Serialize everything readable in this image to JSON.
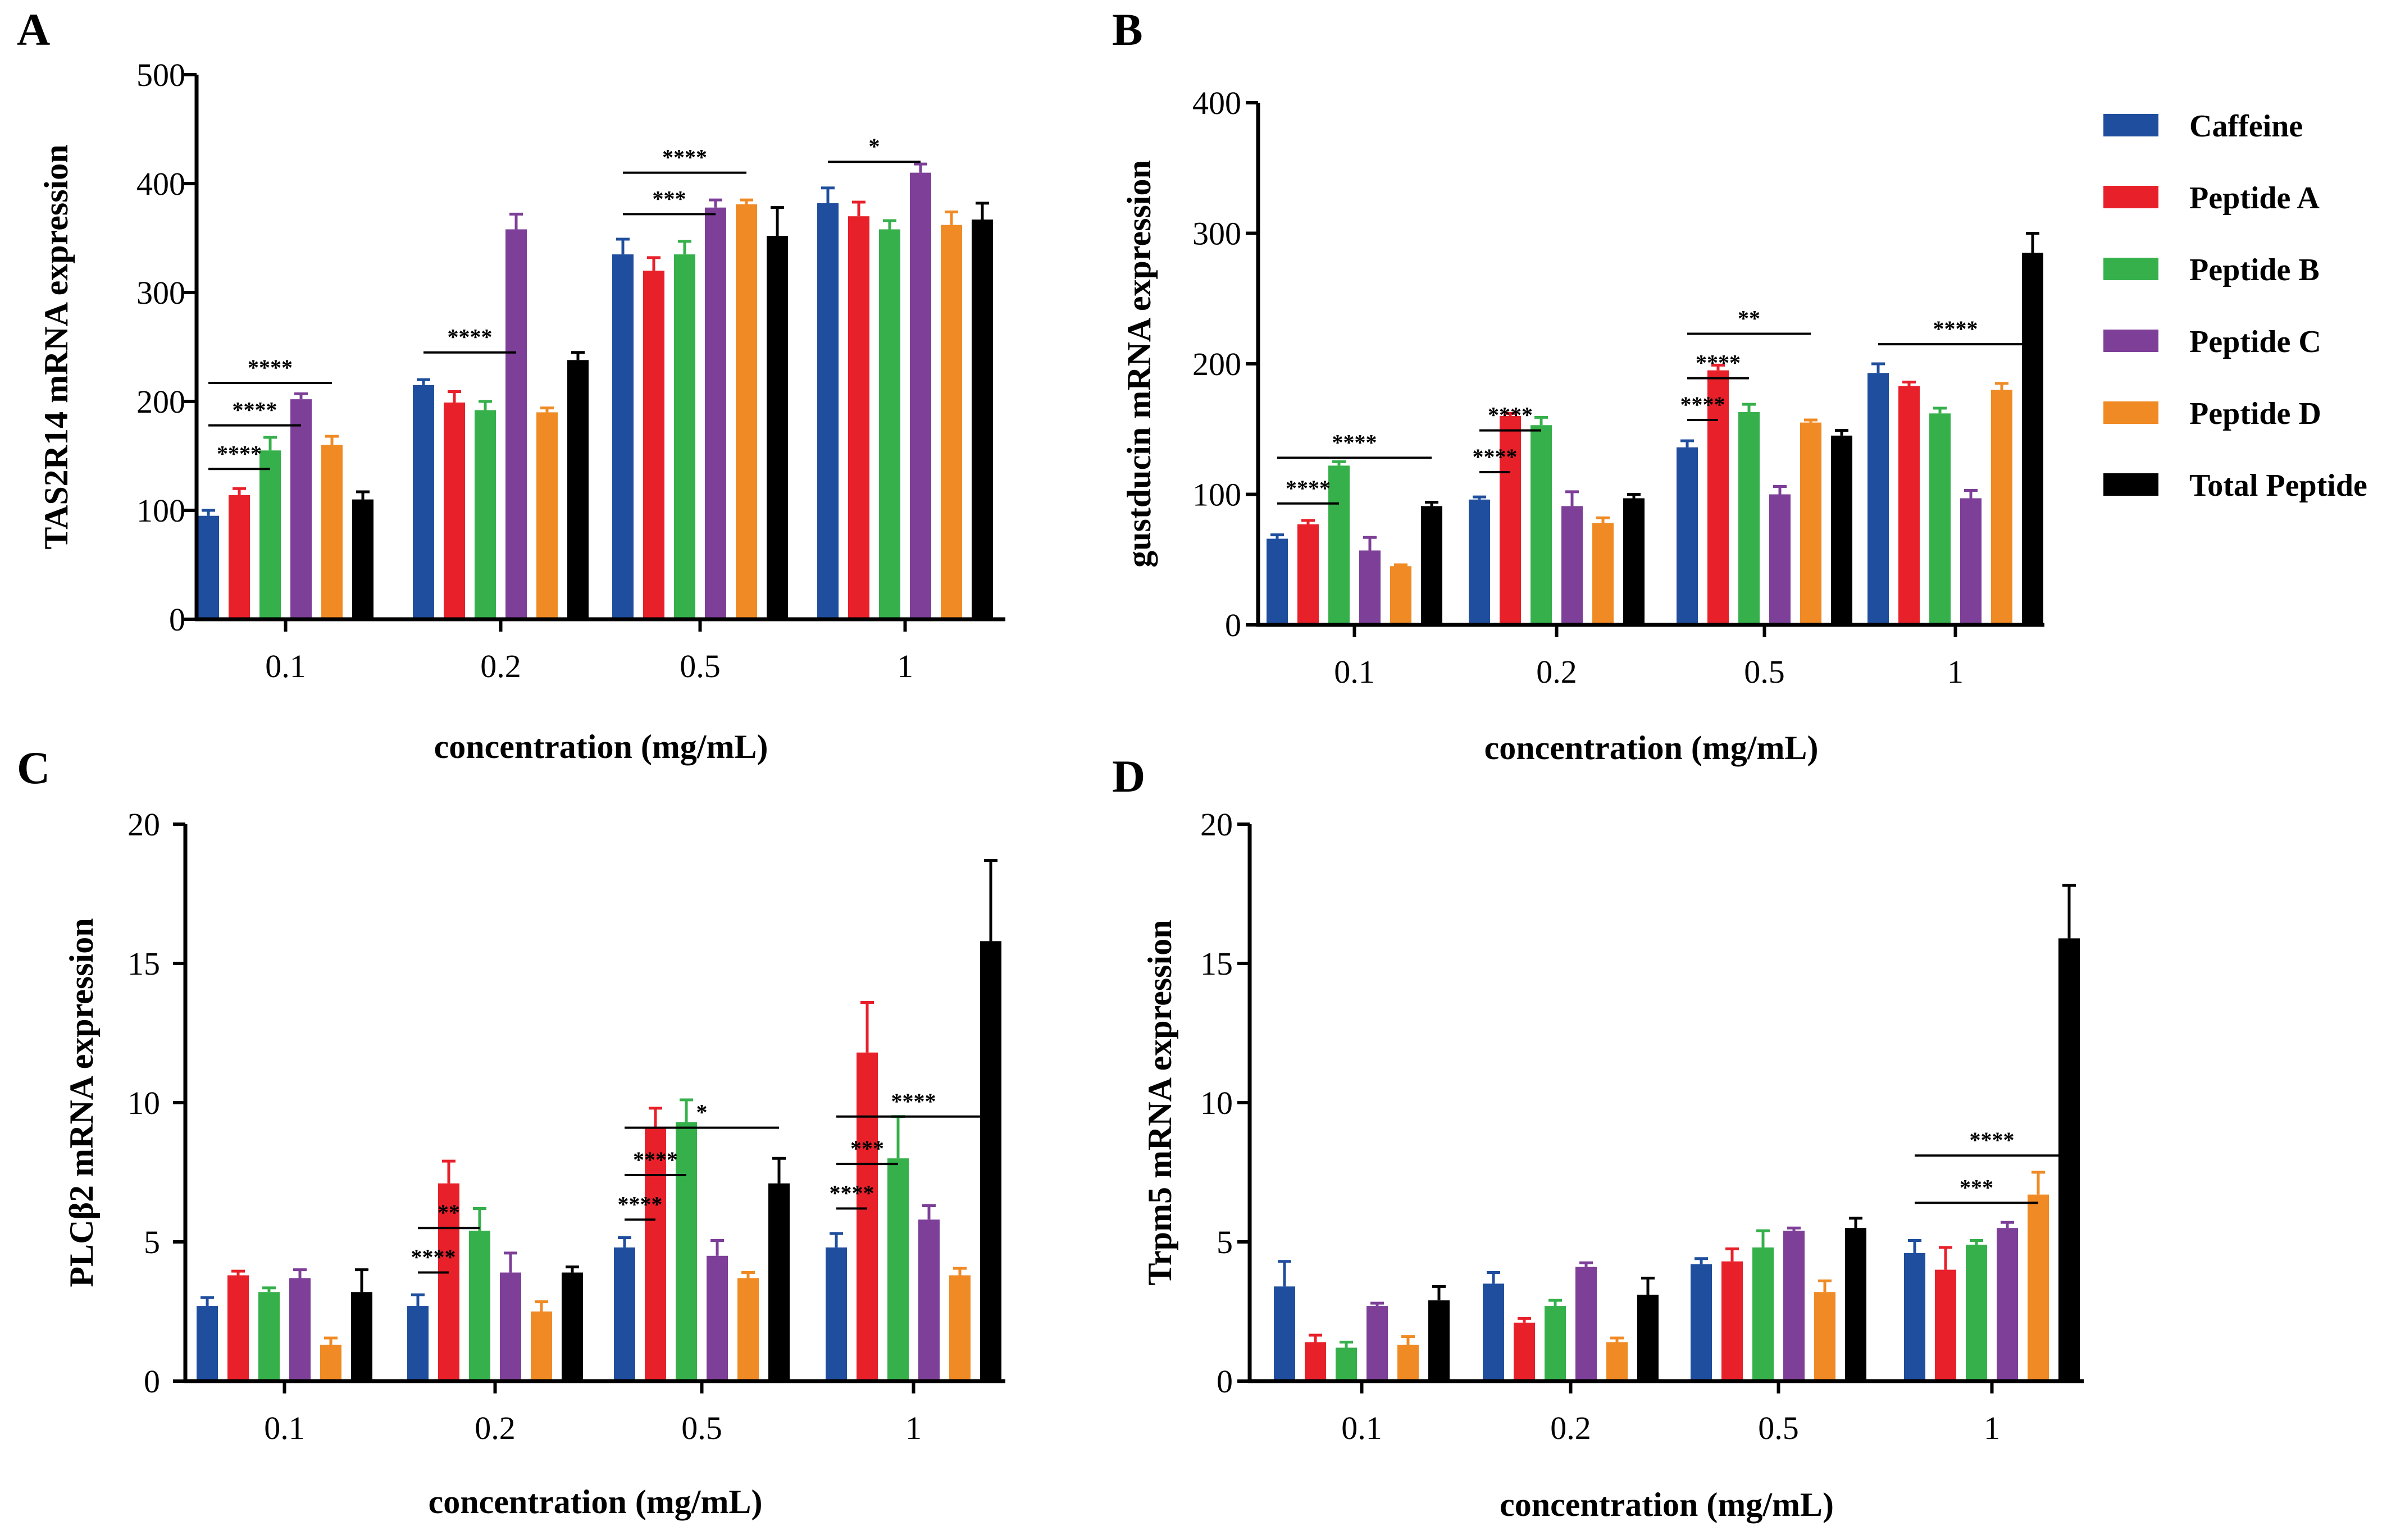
{
  "legend": [
    {
      "name": "Caffeine",
      "color": "#1F4E9E"
    },
    {
      "name": "Peptide A",
      "color": "#E8202A"
    },
    {
      "name": "Peptide B",
      "color": "#35B04A"
    },
    {
      "name": "Peptide C",
      "color": "#7D3F98"
    },
    {
      "name": "Peptide D",
      "color": "#F08A24"
    },
    {
      "name": "Total Peptide",
      "color": "#000000"
    }
  ],
  "chart_data": [
    {
      "panel": "A",
      "type": "bar",
      "ylabel": "TAS2R14 mRNA expression",
      "xlabel": "concentration (mg/mL)",
      "categories": [
        "0.1",
        "0.2",
        "0.5",
        "1"
      ],
      "ylim": [
        0,
        500
      ],
      "yticks": [
        "0",
        "100",
        "200",
        "300",
        "400",
        "500"
      ],
      "series": [
        {
          "name": "Caffeine",
          "values": [
            95,
            215,
            335,
            382
          ],
          "errors": [
            5,
            5,
            14,
            14
          ]
        },
        {
          "name": "Peptide A",
          "values": [
            114,
            199,
            320,
            370
          ],
          "errors": [
            6,
            10,
            12,
            13
          ]
        },
        {
          "name": "Peptide B",
          "values": [
            155,
            192,
            335,
            358
          ],
          "errors": [
            12,
            8,
            12,
            8
          ]
        },
        {
          "name": "Peptide C",
          "values": [
            202,
            358,
            378,
            410
          ],
          "errors": [
            5,
            14,
            7,
            8
          ]
        },
        {
          "name": "Peptide D",
          "values": [
            160,
            190,
            381,
            362
          ],
          "errors": [
            8,
            4,
            4,
            12
          ]
        },
        {
          "name": "Total Peptide",
          "values": [
            110,
            238,
            352,
            367
          ],
          "errors": [
            7,
            7,
            26,
            15
          ]
        }
      ],
      "significance": [
        {
          "label": "****",
          "group": 0,
          "from": 0,
          "to": 2,
          "y": 138
        },
        {
          "label": "****",
          "group": 0,
          "from": 0,
          "to": 3,
          "y": 178
        },
        {
          "label": "****",
          "group": 0,
          "from": 0,
          "to": 4,
          "y": 217
        },
        {
          "label": "****",
          "group": 1,
          "from": 0,
          "to": 3,
          "y": 245
        },
        {
          "label": "***",
          "group": 2,
          "from": 0,
          "to": 3,
          "y": 372
        },
        {
          "label": "****",
          "group": 2,
          "from": 0,
          "to": 4,
          "y": 410
        },
        {
          "label": "*",
          "group": 3,
          "from": 0,
          "to": 3,
          "y": 420
        }
      ]
    },
    {
      "panel": "B",
      "type": "bar",
      "ylabel": "gustducin mRNA expression",
      "xlabel": "concentration (mg/mL)",
      "categories": [
        "0.1",
        "0.2",
        "0.5",
        "1"
      ],
      "ylim": [
        0,
        400
      ],
      "yticks": [
        "0",
        "100",
        "200",
        "300",
        "400"
      ],
      "series": [
        {
          "name": "Caffeine",
          "values": [
            66,
            96,
            136,
            193
          ],
          "errors": [
            3,
            2,
            5,
            7
          ]
        },
        {
          "name": "Peptide A",
          "values": [
            77,
            160,
            195,
            183
          ],
          "errors": [
            3,
            2,
            4,
            3
          ]
        },
        {
          "name": "Peptide B",
          "values": [
            122,
            153,
            163,
            162
          ],
          "errors": [
            3,
            6,
            6,
            4
          ]
        },
        {
          "name": "Peptide C",
          "values": [
            57,
            91,
            100,
            97
          ],
          "errors": [
            10,
            11,
            6,
            6
          ]
        },
        {
          "name": "Peptide D",
          "values": [
            45,
            78,
            155,
            180
          ],
          "errors": [
            1,
            4,
            2,
            5
          ]
        },
        {
          "name": "Total Peptide",
          "values": [
            91,
            97,
            145,
            285
          ],
          "errors": [
            3,
            3,
            4,
            15
          ]
        }
      ],
      "significance": [
        {
          "label": "****",
          "group": 0,
          "from": 0,
          "to": 2,
          "y": 93
        },
        {
          "label": "****",
          "group": 0,
          "from": 0,
          "to": 5,
          "y": 128
        },
        {
          "label": "****",
          "group": 1,
          "from": 0,
          "to": 1,
          "y": 117
        },
        {
          "label": "****",
          "group": 1,
          "from": 0,
          "to": 2,
          "y": 149
        },
        {
          "label": "****",
          "group": 2,
          "from": 0,
          "to": 1,
          "y": 157
        },
        {
          "label": "****",
          "group": 2,
          "from": 0,
          "to": 2,
          "y": 189
        },
        {
          "label": "**",
          "group": 2,
          "from": 0,
          "to": 4,
          "y": 223
        },
        {
          "label": "****",
          "group": 3,
          "from": 0,
          "to": 5,
          "y": 215
        }
      ]
    },
    {
      "panel": "C",
      "type": "bar",
      "ylabel": "PLCβ2 mRNA expression",
      "xlabel": "concentration (mg/mL)",
      "categories": [
        "0.1",
        "0.2",
        "0.5",
        "1"
      ],
      "ylim": [
        0,
        20
      ],
      "yticks": [
        "0",
        "5",
        "10",
        "15",
        "20"
      ],
      "series": [
        {
          "name": "Caffeine",
          "values": [
            2.7,
            2.7,
            4.8,
            4.8
          ],
          "errors": [
            0.3,
            0.4,
            0.35,
            0.5
          ]
        },
        {
          "name": "Peptide A",
          "values": [
            3.8,
            7.1,
            9.1,
            11.8
          ],
          "errors": [
            0.15,
            0.8,
            0.7,
            1.8
          ]
        },
        {
          "name": "Peptide B",
          "values": [
            3.2,
            5.4,
            9.3,
            8.0
          ],
          "errors": [
            0.15,
            0.8,
            0.8,
            1.5
          ]
        },
        {
          "name": "Peptide C",
          "values": [
            3.7,
            3.9,
            4.5,
            5.8
          ],
          "errors": [
            0.3,
            0.7,
            0.55,
            0.5
          ]
        },
        {
          "name": "Peptide D",
          "values": [
            1.3,
            2.5,
            3.7,
            3.8
          ],
          "errors": [
            0.25,
            0.35,
            0.2,
            0.25
          ]
        },
        {
          "name": "Total Peptide",
          "values": [
            3.2,
            3.9,
            7.1,
            15.8
          ],
          "errors": [
            0.8,
            0.2,
            0.9,
            2.9
          ]
        }
      ],
      "significance": [
        {
          "label": "****",
          "group": 1,
          "from": 0,
          "to": 1,
          "y": 3.9
        },
        {
          "label": "**",
          "group": 1,
          "from": 0,
          "to": 2,
          "y": 5.5
        },
        {
          "label": "****",
          "group": 2,
          "from": 0,
          "to": 1,
          "y": 5.8
        },
        {
          "label": "****",
          "group": 2,
          "from": 0,
          "to": 2,
          "y": 7.4
        },
        {
          "label": "*",
          "group": 2,
          "from": 0,
          "to": 5,
          "y": 9.1
        },
        {
          "label": "****",
          "group": 3,
          "from": 0,
          "to": 1,
          "y": 6.2
        },
        {
          "label": "***",
          "group": 3,
          "from": 0,
          "to": 2,
          "y": 7.8
        },
        {
          "label": "****",
          "group": 3,
          "from": 0,
          "to": 5,
          "y": 9.5
        }
      ]
    },
    {
      "panel": "D",
      "type": "bar",
      "ylabel": "Trpm5 mRNA expression",
      "xlabel": "concentration (mg/mL)",
      "categories": [
        "0.1",
        "0.2",
        "0.5",
        "1"
      ],
      "ylim": [
        0,
        20
      ],
      "yticks": [
        "0",
        "5",
        "10",
        "15",
        "20"
      ],
      "series": [
        {
          "name": "Caffeine",
          "values": [
            3.4,
            3.5,
            4.2,
            4.6
          ],
          "errors": [
            0.9,
            0.4,
            0.2,
            0.45
          ]
        },
        {
          "name": "Peptide A",
          "values": [
            1.4,
            2.1,
            4.3,
            4.0
          ],
          "errors": [
            0.25,
            0.15,
            0.45,
            0.8
          ]
        },
        {
          "name": "Peptide B",
          "values": [
            1.2,
            2.7,
            4.8,
            4.9
          ],
          "errors": [
            0.2,
            0.2,
            0.6,
            0.15
          ]
        },
        {
          "name": "Peptide C",
          "values": [
            2.7,
            4.1,
            5.4,
            5.5
          ],
          "errors": [
            0.1,
            0.15,
            0.1,
            0.2
          ]
        },
        {
          "name": "Peptide D",
          "values": [
            1.3,
            1.4,
            3.2,
            6.7
          ],
          "errors": [
            0.3,
            0.15,
            0.4,
            0.8
          ]
        },
        {
          "name": "Total Peptide",
          "values": [
            2.9,
            3.1,
            5.5,
            15.9
          ],
          "errors": [
            0.5,
            0.6,
            0.35,
            1.9
          ]
        }
      ],
      "significance": [
        {
          "label": "***",
          "group": 3,
          "from": 0,
          "to": 4,
          "y": 6.4
        },
        {
          "label": "****",
          "group": 3,
          "from": 0,
          "to": 5,
          "y": 8.1
        }
      ]
    }
  ]
}
